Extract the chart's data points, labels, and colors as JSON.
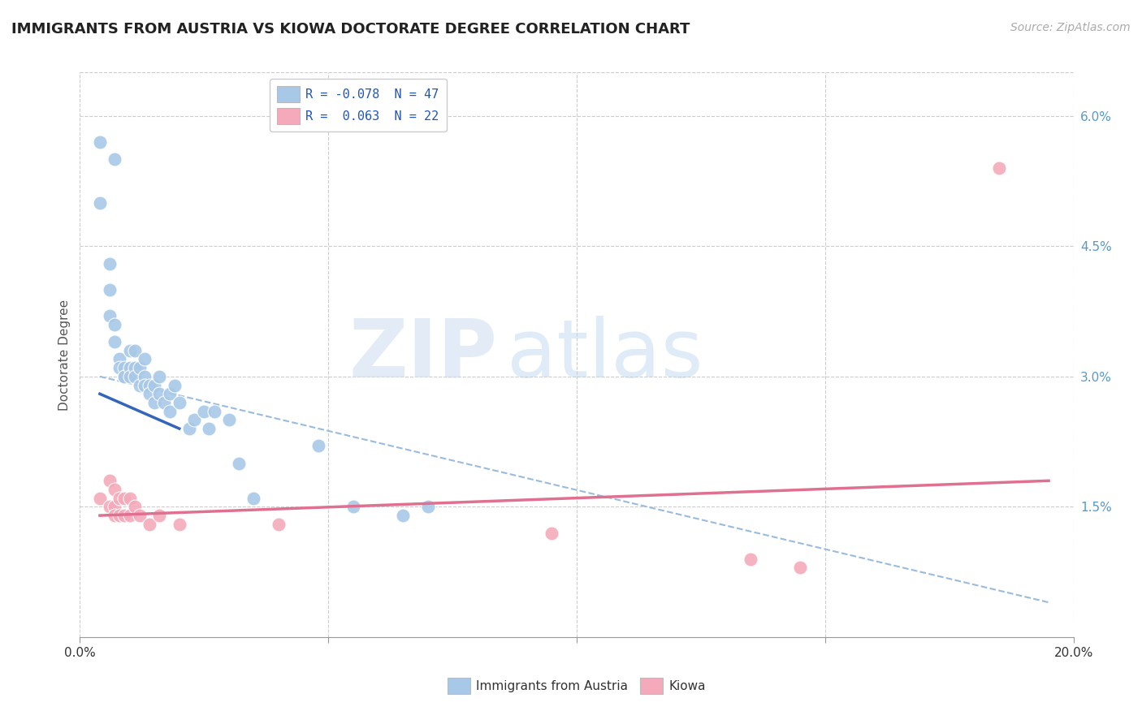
{
  "title": "IMMIGRANTS FROM AUSTRIA VS KIOWA DOCTORATE DEGREE CORRELATION CHART",
  "source_text": "Source: ZipAtlas.com",
  "ylabel": "Doctorate Degree",
  "xlim": [
    0.0,
    0.2
  ],
  "ylim": [
    0.0,
    0.065
  ],
  "x_ticks": [
    0.0,
    0.05,
    0.1,
    0.15,
    0.2
  ],
  "x_tick_labels_edge": [
    "0.0%",
    "",
    "",
    "",
    "20.0%"
  ],
  "y_ticks_right": [
    0.015,
    0.03,
    0.045,
    0.06
  ],
  "y_tick_labels_right": [
    "1.5%",
    "3.0%",
    "4.5%",
    "6.0%"
  ],
  "legend_blue_label": "R = -0.078  N = 47",
  "legend_pink_label": "R =  0.063  N = 22",
  "blue_color": "#a8c8e8",
  "pink_color": "#f4aabb",
  "blue_line_color": "#3366bb",
  "pink_line_color": "#e07090",
  "dashed_line_color": "#99bbdd",
  "watermark_zip": "ZIP",
  "watermark_atlas": "atlas",
  "blue_scatter_x": [
    0.004,
    0.007,
    0.004,
    0.006,
    0.006,
    0.006,
    0.007,
    0.007,
    0.008,
    0.008,
    0.009,
    0.009,
    0.009,
    0.01,
    0.01,
    0.01,
    0.011,
    0.011,
    0.011,
    0.012,
    0.012,
    0.013,
    0.013,
    0.013,
    0.014,
    0.014,
    0.015,
    0.015,
    0.016,
    0.016,
    0.017,
    0.018,
    0.018,
    0.019,
    0.02,
    0.022,
    0.023,
    0.025,
    0.026,
    0.027,
    0.03,
    0.032,
    0.035,
    0.048,
    0.055,
    0.065,
    0.07
  ],
  "blue_scatter_y": [
    0.057,
    0.055,
    0.05,
    0.043,
    0.04,
    0.037,
    0.036,
    0.034,
    0.032,
    0.031,
    0.031,
    0.03,
    0.03,
    0.033,
    0.031,
    0.03,
    0.033,
    0.031,
    0.03,
    0.031,
    0.029,
    0.032,
    0.03,
    0.029,
    0.029,
    0.028,
    0.029,
    0.027,
    0.03,
    0.028,
    0.027,
    0.028,
    0.026,
    0.029,
    0.027,
    0.024,
    0.025,
    0.026,
    0.024,
    0.026,
    0.025,
    0.02,
    0.016,
    0.022,
    0.015,
    0.014,
    0.015
  ],
  "pink_scatter_x": [
    0.004,
    0.006,
    0.006,
    0.007,
    0.007,
    0.007,
    0.008,
    0.008,
    0.009,
    0.009,
    0.01,
    0.01,
    0.011,
    0.012,
    0.014,
    0.016,
    0.02,
    0.04,
    0.095,
    0.135,
    0.145,
    0.185
  ],
  "pink_scatter_y": [
    0.016,
    0.018,
    0.015,
    0.017,
    0.015,
    0.014,
    0.016,
    0.014,
    0.016,
    0.014,
    0.016,
    0.014,
    0.015,
    0.014,
    0.013,
    0.014,
    0.013,
    0.013,
    0.012,
    0.009,
    0.008,
    0.054
  ],
  "blue_line_x": [
    0.004,
    0.02
  ],
  "blue_line_y": [
    0.028,
    0.024
  ],
  "dashed_line_x": [
    0.004,
    0.195
  ],
  "dashed_line_y": [
    0.03,
    0.004
  ],
  "pink_line_x": [
    0.004,
    0.195
  ],
  "pink_line_y": [
    0.014,
    0.018
  ],
  "legend_bottom_blue": "Immigrants from Austria",
  "legend_bottom_pink": "Kiowa",
  "title_fontsize": 13,
  "source_fontsize": 10,
  "label_fontsize": 11,
  "tick_fontsize": 11,
  "background_color": "#ffffff",
  "grid_color": "#cccccc"
}
